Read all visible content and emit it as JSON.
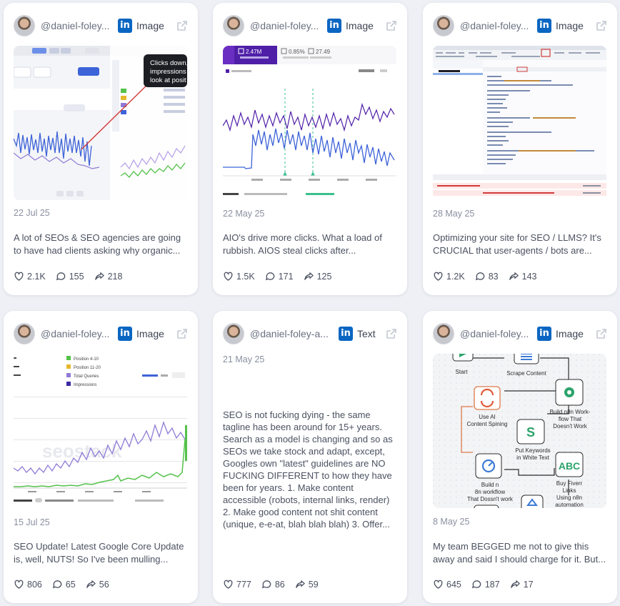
{
  "cards": [
    {
      "handle": "@daniel-foley...",
      "platform": "LinkedIn",
      "type": "Image",
      "date": "22 Jul 25",
      "excerpt": "A lot of SEOs & SEO agencies are going to have had clients asking why organic...",
      "likes": "2.1K",
      "comments": "155",
      "shares": "218",
      "thumb_text": [
        "Clicks down,",
        "impressions",
        "look at posit"
      ]
    },
    {
      "handle": "@daniel-foley...",
      "platform": "LinkedIn",
      "type": "Image",
      "date": "22 May 25",
      "excerpt": "AIO's drive more clicks. What a load of rubbish. AIOS steal clicks after...",
      "likes": "1.5K",
      "comments": "171",
      "shares": "125",
      "thumb_text": [
        "2.47M",
        "0.85%",
        "27.49"
      ]
    },
    {
      "handle": "@daniel-foley...",
      "platform": "LinkedIn",
      "type": "Image",
      "date": "28 May 25",
      "excerpt": "Optimizing your site for SEO / LLMS? It's CRUCIAL that user-agents / bots are...",
      "likes": "1.2K",
      "comments": "83",
      "shares": "143"
    },
    {
      "handle": "@daniel-foley...",
      "platform": "LinkedIn",
      "type": "Image",
      "date": "15 Jul 25",
      "excerpt": "SEO Update! Latest Google Core Update is, well, NUTS! So I've been mulling...",
      "likes": "806",
      "comments": "65",
      "shares": "56",
      "thumb_text": [
        "Position 4-10",
        "Position 11-20",
        "Total Queries",
        "Impressions",
        "seostack"
      ]
    },
    {
      "handle": "@daniel-foley-a...",
      "platform": "LinkedIn",
      "type": "Text",
      "date": "21 May 25",
      "excerpt": "SEO is not fucking dying - the same tagline has been around for 15+ years. Search as a model is changing and so as SEOs we take stock and adapt, except, Googles own \"latest\" guidelines are NO FUCKING DIFFERENT to how they have been for years. 1. Make content accessible (robots, internal links, render) 2. Make good content not shit content (unique, e-e-at, blah blah blah) 3. Offer...",
      "likes": "777",
      "comments": "86",
      "shares": "59"
    },
    {
      "handle": "@daniel-foley...",
      "platform": "LinkedIn",
      "type": "Image",
      "date": "8 May 25",
      "excerpt": "My team BEGGED me not to give this away and said I should charge for it. But...",
      "likes": "645",
      "comments": "187",
      "shares": "17",
      "thumb_text": [
        "Start",
        "Scrape Content",
        "Use AI",
        "Content Spining",
        "Build n8n Work-",
        "flow That",
        "Doesn't Work",
        "Put Keywords",
        "in White Text",
        "Build n",
        "8n workflow",
        "That Dossn't work",
        "ABC",
        "Buy Fiverr",
        "Links",
        "Using n8n",
        "automation"
      ]
    }
  ],
  "colors": {
    "linkedin": "#0a66c2",
    "background": "#eef0f5",
    "card": "#ffffff",
    "chart_blue": "#3d63d8",
    "chart_purple": "#6b3fa0",
    "chart_green": "#54c24a"
  }
}
